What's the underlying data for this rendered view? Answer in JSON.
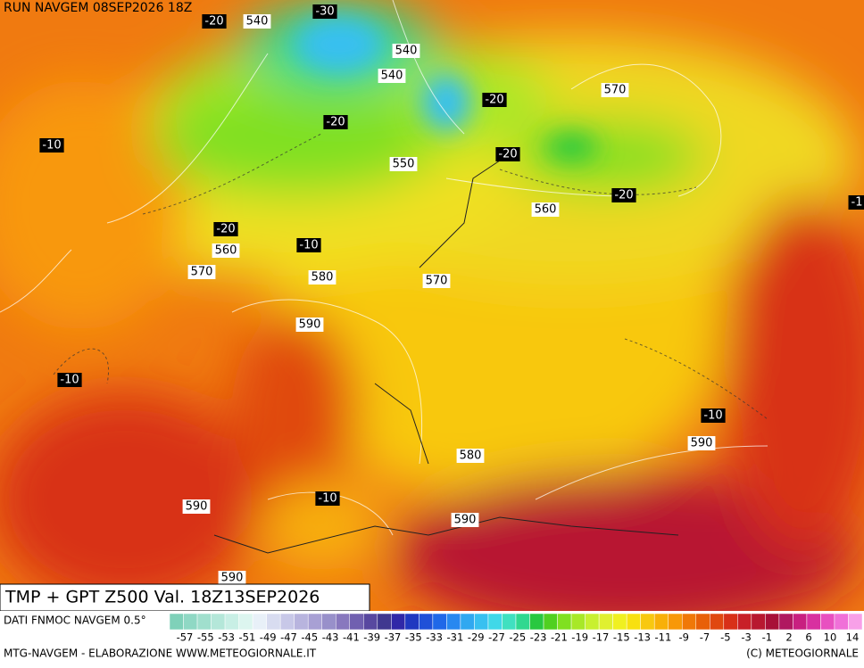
{
  "header": {
    "run": "RUN NAVGEM 08SEP2026 18Z"
  },
  "map": {
    "temperature_labels": [
      "-30",
      "-20",
      "-20",
      "-20",
      "-10",
      "-20",
      "-20",
      "-20",
      "-10",
      "-10",
      "-10",
      "-10",
      "-1"
    ],
    "height_labels": [
      "540",
      "540",
      "540",
      "570",
      "550",
      "560",
      "560",
      "570",
      "580",
      "570",
      "590",
      "590",
      "580",
      "590",
      "590",
      "590"
    ]
  },
  "footer": {
    "title": "TMP + GPT Z500 Val. 18Z13SEP2026",
    "source": "DATI FNMOC NAVGEM 0.5°",
    "credit_left": "MTG-NAVGEM - ELABORAZIONE WWW.METEOGIORNALE.IT",
    "credit_right": "(C) METEOGIORNALE"
  },
  "colorbar": {
    "labels": [
      "-57",
      "-55",
      "-53",
      "-51",
      "-49",
      "-47",
      "-45",
      "-43",
      "-41",
      "-39",
      "-37",
      "-35",
      "-33",
      "-31",
      "-29",
      "-27",
      "-25",
      "-23",
      "-21",
      "-19",
      "-17",
      "-15",
      "-13",
      "-11",
      "-9",
      "-7",
      "-5",
      "-3",
      "-1",
      "2",
      "6",
      "10",
      "14"
    ],
    "colors": [
      "#7fd1b9",
      "#8fd8c4",
      "#a0dfcd",
      "#b4e7d9",
      "#c8efe5",
      "#dcf5ef",
      "#e8f0f8",
      "#d8dcf0",
      "#c8c8e8",
      "#b8b4de",
      "#a8a0d4",
      "#9890ca",
      "#8878be",
      "#7060b0",
      "#5848a0",
      "#403890",
      "#3028a8",
      "#2038c0",
      "#2050d8",
      "#2068e8",
      "#2888f0",
      "#30a8f0",
      "#38c0f0",
      "#40d8e8",
      "#40e0c0",
      "#30d890",
      "#28c840",
      "#50d020",
      "#80e020",
      "#a8e828",
      "#c8f030",
      "#e0f030",
      "#f0f020",
      "#f8e010",
      "#f8c810",
      "#f8b008",
      "#f89808",
      "#f07808",
      "#e86008",
      "#e04810",
      "#d83018",
      "#c82028",
      "#b81830",
      "#a81038",
      "#b01860",
      "#c82080",
      "#d830a0",
      "#e850c0",
      "#f070d8",
      "#f8a0e8"
    ]
  }
}
